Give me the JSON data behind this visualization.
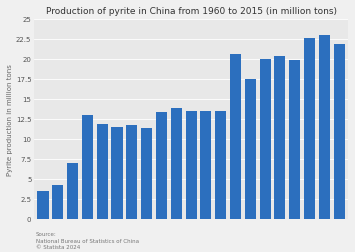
{
  "title": "Production of pyrite in China from 1960 to 2015 (in million tons)",
  "ylabel": "Pyrite production in million tons",
  "values": [
    3.5,
    4.2,
    7.0,
    13.0,
    11.8,
    11.4,
    11.7,
    11.3,
    13.3,
    13.8,
    13.4,
    13.5,
    13.4,
    20.6,
    17.4,
    20.0,
    20.3,
    19.8,
    22.6,
    22.9,
    21.8
  ],
  "bar_color": "#2c6fbe",
  "ylim": [
    0,
    25
  ],
  "yticks": [
    0,
    2.5,
    5,
    7.5,
    10,
    12.5,
    15,
    17.5,
    20,
    22.5,
    25
  ],
  "ytick_labels": [
    "0",
    "2.5",
    "5",
    "7.5",
    "10",
    "12.5",
    "15",
    "17.5",
    "20",
    "22.5",
    "25"
  ],
  "source_line1": "Source:",
  "source_line2": "National Bureau of Statistics of China",
  "source_line3": "© Statista 2024",
  "bg_color": "#f0f0f0",
  "plot_bg_color": "#e8e8e8",
  "title_fontsize": 6.5,
  "tick_fontsize": 5.0,
  "ylabel_fontsize": 5.0,
  "source_fontsize": 4.0,
  "bar_width": 0.75
}
